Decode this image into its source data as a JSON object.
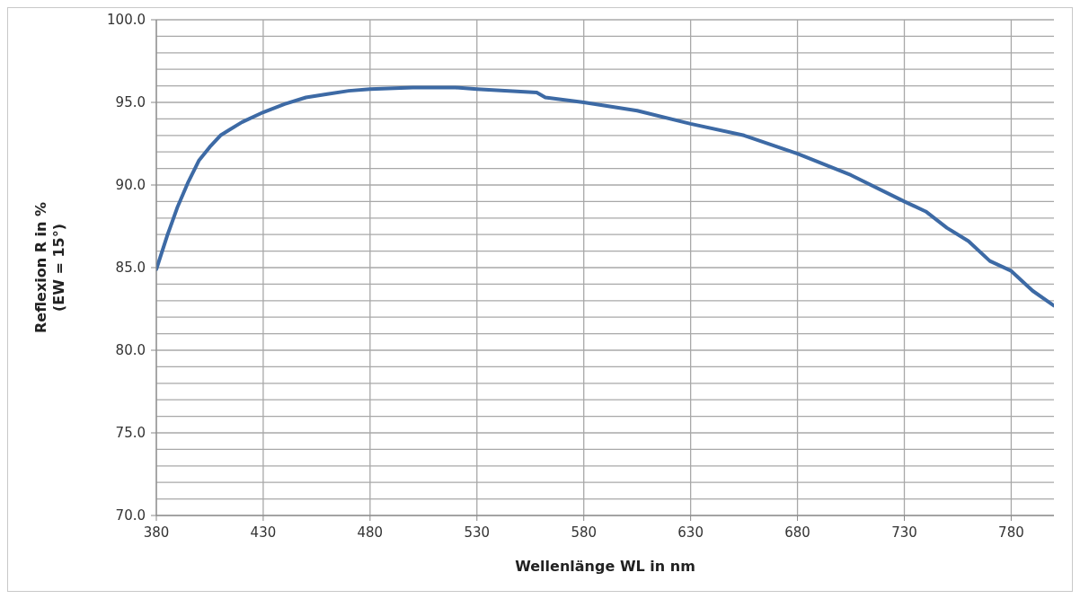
{
  "chart_data": {
    "type": "line",
    "xlabel": "Wellenlänge WL in nm",
    "ylabel": "Reflexion R in %\n(EW = 15°)",
    "x": [
      380,
      385,
      390,
      395,
      400,
      405,
      410,
      420,
      430,
      440,
      450,
      460,
      470,
      480,
      500,
      520,
      530,
      543,
      558,
      562,
      580,
      605,
      630,
      655,
      680,
      705,
      730,
      740,
      750,
      760,
      770,
      780,
      790,
      800
    ],
    "series": [
      {
        "color": "#3d6aa5",
        "values": [
          84.9,
          86.9,
          88.7,
          90.2,
          91.5,
          92.3,
          93.0,
          93.8,
          94.4,
          94.9,
          95.3,
          95.5,
          95.7,
          95.8,
          95.9,
          95.9,
          95.8,
          95.7,
          95.6,
          95.3,
          95.0,
          94.5,
          93.7,
          93.0,
          91.9,
          90.6,
          89.0,
          88.4,
          87.4,
          86.6,
          85.4,
          84.8,
          83.6,
          82.7
        ]
      }
    ],
    "xlim": [
      380,
      800
    ],
    "xticks": [
      380,
      430,
      480,
      530,
      580,
      630,
      680,
      730,
      780
    ],
    "ylim": [
      70,
      100
    ],
    "yticks": [
      {
        "value": 70,
        "label": "70.0"
      },
      {
        "value": 71,
        "label": null
      },
      {
        "value": 72,
        "label": null
      },
      {
        "value": 73,
        "label": null
      },
      {
        "value": 74,
        "label": null
      },
      {
        "value": 75,
        "label": "75.0"
      },
      {
        "value": 76,
        "label": null
      },
      {
        "value": 77,
        "label": null
      },
      {
        "value": 78,
        "label": null
      },
      {
        "value": 79,
        "label": null
      },
      {
        "value": 80,
        "label": "80.0"
      },
      {
        "value": 81,
        "label": null
      },
      {
        "value": 82,
        "label": null
      },
      {
        "value": 83,
        "label": null
      },
      {
        "value": 84,
        "label": null
      },
      {
        "value": 85,
        "label": "85.0"
      },
      {
        "value": 86,
        "label": null
      },
      {
        "value": 87,
        "label": null
      },
      {
        "value": 88,
        "label": null
      },
      {
        "value": 89,
        "label": null
      },
      {
        "value": 90,
        "label": "90.0"
      },
      {
        "value": 91,
        "label": null
      },
      {
        "value": 92,
        "label": null
      },
      {
        "value": 93,
        "label": null
      },
      {
        "value": 94,
        "label": null
      },
      {
        "value": 95,
        "label": "95.0"
      },
      {
        "value": 96,
        "label": null
      },
      {
        "value": 97,
        "label": null
      },
      {
        "value": 98,
        "label": null
      },
      {
        "value": 99,
        "label": null
      },
      {
        "value": 100,
        "label": "100.0"
      }
    ],
    "grid": true,
    "legend": false,
    "marker": "none",
    "line_style": "solid"
  }
}
